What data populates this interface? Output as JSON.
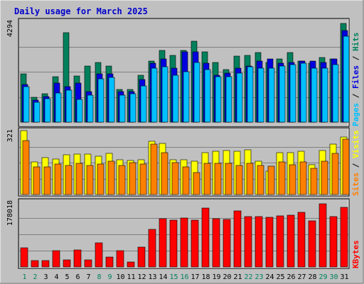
{
  "colors": {
    "bg": "#c0c0c0",
    "panel": "#c0c0c0",
    "grid": "#808080",
    "title": "#0000cc",
    "hits": "#00805c",
    "files": "#0000e0",
    "pages": "#00c0ff",
    "visits": "#ffff00",
    "sites": "#ff8000",
    "kbytes": "#ff0000",
    "weekend": "#00805c",
    "weekday": "#000000",
    "separator": "#000000"
  },
  "chart_data": {
    "title": "Daily usage for March 2025",
    "x": [
      "1",
      "2",
      "3",
      "4",
      "5",
      "6",
      "7",
      "8",
      "9",
      "10",
      "11",
      "12",
      "13",
      "14",
      "15",
      "16",
      "17",
      "18",
      "19",
      "20",
      "21",
      "22",
      "23",
      "24",
      "25",
      "26",
      "27",
      "28",
      "29",
      "30",
      "31"
    ],
    "weekend_days": [
      "1",
      "2",
      "8",
      "9",
      "15",
      "16",
      "22",
      "23",
      "29",
      "30"
    ],
    "panels": [
      {
        "name": "hits-files-pages",
        "type": "bar",
        "ymax_label": "4294",
        "ymax": 4294,
        "series": [
          {
            "name": "Hits",
            "values": [
              2050,
              1050,
              1200,
              1950,
              3800,
              1980,
              2400,
              2550,
              2400,
              1400,
              1400,
              2000,
              2600,
              3050,
              2850,
              3050,
              3450,
              3000,
              2550,
              2250,
              2800,
              2850,
              2950,
              2550,
              2700,
              2950,
              2600,
              2500,
              2750,
              2700,
              4200
            ]
          },
          {
            "name": "Files",
            "values": [
              1600,
              950,
              1100,
              1650,
              1500,
              1650,
              1300,
              2050,
              2050,
              1300,
              1300,
              1800,
              2500,
              2700,
              2300,
              3000,
              3000,
              2500,
              2000,
              2100,
              2300,
              2400,
              2600,
              2700,
              2500,
              2550,
              2600,
              2600,
              2550,
              2700,
              3900
            ]
          },
          {
            "name": "Pages",
            "values": [
              1500,
              850,
              1000,
              1250,
              1350,
              970,
              1150,
              1850,
              1900,
              1150,
              1200,
              1550,
              2300,
              2350,
              2000,
              2150,
              2550,
              2250,
              1950,
              1950,
              2100,
              2350,
              2300,
              2300,
              2400,
              2450,
              2500,
              2300,
              2300,
              2450,
              3650
            ]
          }
        ],
        "legend": [
          "Pages",
          "Files",
          "Hits"
        ]
      },
      {
        "name": "visits-sites",
        "type": "bar",
        "ymax_label": "321",
        "ymax": 321,
        "series": [
          {
            "name": "Visits",
            "values": [
              321,
              165,
              185,
              180,
              200,
              205,
              202,
              192,
              208,
              173,
              171,
              173,
              268,
              258,
              174,
              173,
              167,
              210,
              219,
              220,
              216,
              223,
              166,
              117,
              212,
              212,
              216,
              150,
              222,
              253,
              290
            ]
          },
          {
            "name": "Sites",
            "values": [
              272,
              138,
              140,
              152,
              146,
              158,
              145,
              152,
              167,
              145,
              162,
              152,
              253,
              210,
              160,
              140,
              110,
              157,
              158,
              157,
              146,
              158,
              145,
              143,
              163,
              151,
              163,
              132,
              166,
              207,
              279
            ]
          }
        ],
        "legend": [
          "Sites",
          "Visits"
        ]
      },
      {
        "name": "kbytes",
        "type": "bar",
        "ymax_label": "178018",
        "ymax": 178018,
        "series": [
          {
            "name": "KBytes",
            "values": [
              53000,
              17000,
              17000,
              44000,
              20000,
              47000,
              20000,
              66000,
              28000,
              45000,
              14000,
              55000,
              103000,
              132000,
              127000,
              133000,
              127000,
              161000,
              131000,
              129000,
              152000,
              137000,
              137000,
              135000,
              140000,
              141000,
              149000,
              126000,
              173000,
              138000,
              162000
            ]
          }
        ],
        "legend": [
          "KBytes"
        ]
      }
    ]
  }
}
